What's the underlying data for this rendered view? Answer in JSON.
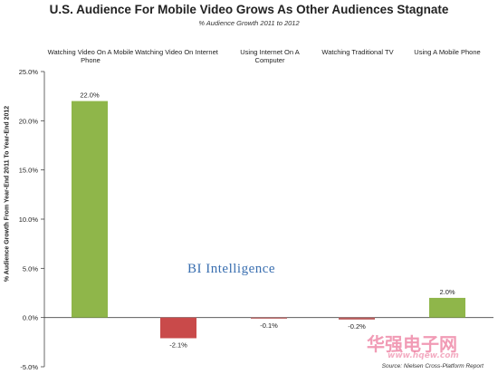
{
  "chart_data": {
    "type": "bar",
    "title": "U.S. Audience For Mobile Video Grows As Other Audiences Stagnate",
    "subtitle": "% Audience Growth 2011 to 2012",
    "ylabel": "% Audience Growth From Year-End 2011 To Year-End 2012",
    "xlabel": "",
    "categories": [
      "Watching Video On A Mobile Phone",
      "Watching Video On Internet",
      "Using Internet On A Computer",
      "Watching Traditional TV",
      "Using A Mobile Phone"
    ],
    "values": [
      22.0,
      -2.1,
      -0.1,
      -0.2,
      2.0
    ],
    "value_labels": [
      "22.0%",
      "-2.1%",
      "-0.1%",
      "-0.2%",
      "2.0%"
    ],
    "ylim": [
      -5.0,
      25.0
    ],
    "yticks": [
      25.0,
      20.0,
      15.0,
      10.0,
      5.0,
      0.0,
      -5.0
    ],
    "ytick_labels": [
      "25.0%",
      "20.0%",
      "15.0%",
      "10.0%",
      "5.0%",
      "0.0%",
      "-5.0%"
    ],
    "grid": false,
    "colors": {
      "positive": "#8fb64a",
      "negative": "#c94a4a",
      "negative_small": "#b85a5a"
    }
  },
  "watermark": "BI Intelligence",
  "source": "Source: Nielsen Cross-Platform Report",
  "corner_watermark": "华强电子网",
  "corner_watermark_sub": "www.hqew.com"
}
